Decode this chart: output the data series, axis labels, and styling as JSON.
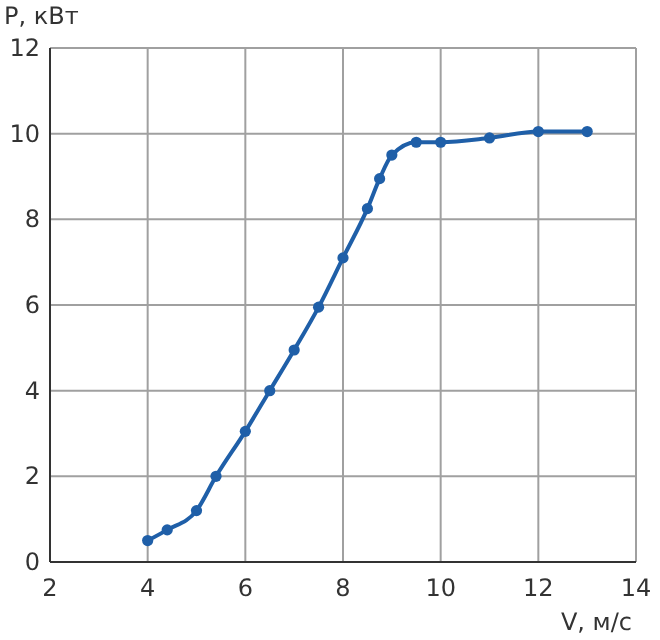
{
  "chart_data": {
    "type": "line",
    "xlabel": "V, м/с",
    "ylabel": "P, кВт",
    "x": [
      4,
      4.4,
      5,
      5.4,
      6,
      6.5,
      7,
      7.5,
      8,
      8.5,
      8.75,
      9,
      9.5,
      10,
      11,
      12,
      13
    ],
    "series": [
      {
        "color": "#1f5fa8",
        "values": [
          0.5,
          0.75,
          1.2,
          2,
          3.05,
          4,
          4.95,
          5.95,
          7.1,
          8.25,
          8.95,
          9.5,
          9.8,
          9.8,
          9.9,
          10.05,
          10.05
        ]
      }
    ],
    "xlim": [
      2,
      14
    ],
    "xticks": [
      2,
      4,
      6,
      8,
      10,
      12,
      14
    ],
    "ylim": [
      0,
      12
    ],
    "yticks": [
      0,
      2,
      4,
      6,
      8,
      10,
      12
    ],
    "grid": true,
    "marker": "circle",
    "line_style": "solid"
  }
}
